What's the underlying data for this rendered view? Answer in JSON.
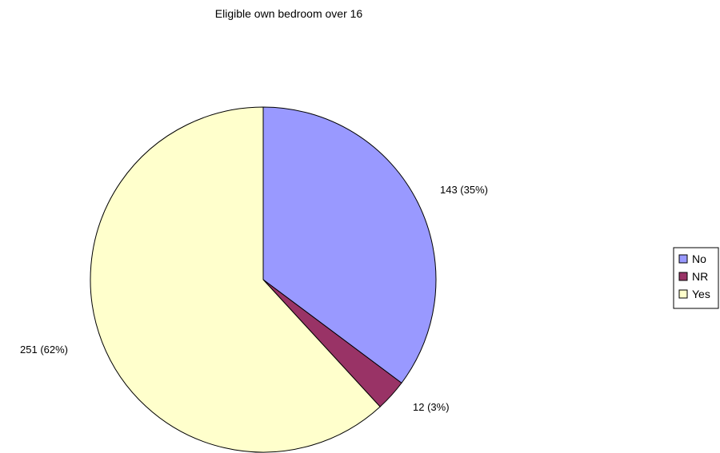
{
  "chart_data": {
    "type": "pie",
    "title": "Eligible own bedroom over 16",
    "categories": [
      "No",
      "NR",
      "Yes"
    ],
    "values": [
      143,
      12,
      251
    ],
    "percent_labels": [
      "35%",
      "3%",
      "62%"
    ],
    "data_labels": [
      "143 (35%)",
      "12 (3%)",
      "251 (62%)"
    ],
    "colors": [
      "#9999FF",
      "#993366",
      "#FFFFCC"
    ],
    "start_angle": "12 o'clock",
    "direction": "clockwise",
    "legend": {
      "position": "right",
      "entries": [
        "No",
        "NR",
        "Yes"
      ]
    }
  }
}
